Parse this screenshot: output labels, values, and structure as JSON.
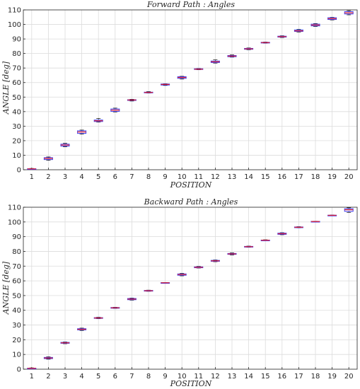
{
  "chart_data": [
    {
      "type": "box",
      "title": "Forward Path :  Angles",
      "xlabel": "POSITION",
      "ylabel": "ANGLE  [deg]",
      "xlim": [
        0.5,
        20.5
      ],
      "ylim": [
        0,
        110
      ],
      "xticks": [
        1,
        2,
        3,
        4,
        5,
        6,
        7,
        8,
        9,
        10,
        11,
        12,
        13,
        14,
        15,
        16,
        17,
        18,
        19,
        20
      ],
      "yticks": [
        0,
        10,
        20,
        30,
        40,
        50,
        60,
        70,
        80,
        90,
        100,
        110
      ],
      "grid": true,
      "box_color": "#3a3af0",
      "median_color": "#e8242a",
      "boxes": [
        {
          "x": 1,
          "min": 0.3,
          "q1": 0.5,
          "median": 0.6,
          "q3": 0.7,
          "max": 0.9
        },
        {
          "x": 2,
          "min": 6.5,
          "q1": 7.0,
          "median": 7.8,
          "q3": 8.3,
          "max": 8.8
        },
        {
          "x": 3,
          "min": 15.8,
          "q1": 16.3,
          "median": 17.0,
          "q3": 17.6,
          "max": 18.2
        },
        {
          "x": 4,
          "min": 24.5,
          "q1": 25.0,
          "median": 26.0,
          "q3": 26.8,
          "max": 27.3
        },
        {
          "x": 5,
          "min": 32.8,
          "q1": 33.2,
          "median": 33.7,
          "q3": 34.2,
          "max": 35.3
        },
        {
          "x": 6,
          "min": 39.8,
          "q1": 40.2,
          "median": 41.0,
          "q3": 41.8,
          "max": 42.4
        },
        {
          "x": 7,
          "min": 47.3,
          "q1": 47.7,
          "median": 48.0,
          "q3": 48.2,
          "max": 48.5
        },
        {
          "x": 8,
          "min": 52.8,
          "q1": 53.0,
          "median": 53.2,
          "q3": 53.4,
          "max": 53.8
        },
        {
          "x": 9,
          "min": 58.0,
          "q1": 58.3,
          "median": 58.7,
          "q3": 59.0,
          "max": 59.2
        },
        {
          "x": 10,
          "min": 62.4,
          "q1": 62.9,
          "median": 63.5,
          "q3": 64.0,
          "max": 64.3
        },
        {
          "x": 11,
          "min": 68.8,
          "q1": 69.0,
          "median": 69.2,
          "q3": 69.5,
          "max": 69.7
        },
        {
          "x": 12,
          "min": 73.4,
          "q1": 73.8,
          "median": 74.3,
          "q3": 74.8,
          "max": 75.6
        },
        {
          "x": 13,
          "min": 77.5,
          "q1": 77.8,
          "median": 78.2,
          "q3": 78.6,
          "max": 79.0
        },
        {
          "x": 14,
          "min": 82.6,
          "q1": 82.9,
          "median": 83.2,
          "q3": 83.5,
          "max": 83.8
        },
        {
          "x": 15,
          "min": 87.1,
          "q1": 87.3,
          "median": 87.5,
          "q3": 87.7,
          "max": 87.9
        },
        {
          "x": 16,
          "min": 91.0,
          "q1": 91.3,
          "median": 91.6,
          "q3": 91.9,
          "max": 92.2
        },
        {
          "x": 17,
          "min": 94.8,
          "q1": 95.2,
          "median": 95.6,
          "q3": 96.2,
          "max": 96.6
        },
        {
          "x": 18,
          "min": 98.6,
          "q1": 99.0,
          "median": 99.6,
          "q3": 100.2,
          "max": 100.6
        },
        {
          "x": 19,
          "min": 103.1,
          "q1": 103.4,
          "median": 104.0,
          "q3": 104.6,
          "max": 104.9
        },
        {
          "x": 20,
          "min": 106.6,
          "q1": 107.2,
          "median": 108.0,
          "q3": 108.8,
          "max": 109.5
        }
      ]
    },
    {
      "type": "box",
      "title": "Backward Path :  Angles",
      "xlabel": "POSITION",
      "ylabel": "ANGLE  [deg]",
      "xlim": [
        0.5,
        20.5
      ],
      "ylim": [
        0,
        110
      ],
      "xticks": [
        1,
        2,
        3,
        4,
        5,
        6,
        7,
        8,
        9,
        10,
        11,
        12,
        13,
        14,
        15,
        16,
        17,
        18,
        19,
        20
      ],
      "yticks": [
        0,
        10,
        20,
        30,
        40,
        50,
        60,
        70,
        80,
        90,
        100,
        110
      ],
      "grid": true,
      "box_color": "#3a3af0",
      "median_color": "#e8242a",
      "boxes": [
        {
          "x": 1,
          "min": 0.3,
          "q1": 0.5,
          "median": 0.6,
          "q3": 0.7,
          "max": 0.9
        },
        {
          "x": 2,
          "min": 6.8,
          "q1": 7.2,
          "median": 7.6,
          "q3": 8.0,
          "max": 8.4
        },
        {
          "x": 3,
          "min": 17.3,
          "q1": 17.6,
          "median": 17.9,
          "q3": 18.2,
          "max": 18.5
        },
        {
          "x": 4,
          "min": 26.3,
          "q1": 26.7,
          "median": 27.1,
          "q3": 27.5,
          "max": 27.9
        },
        {
          "x": 5,
          "min": 34.3,
          "q1": 34.6,
          "median": 34.8,
          "q3": 35.0,
          "max": 35.3
        },
        {
          "x": 6,
          "min": 41.3,
          "q1": 41.5,
          "median": 41.7,
          "q3": 41.9,
          "max": 42.1
        },
        {
          "x": 7,
          "min": 46.9,
          "q1": 47.2,
          "median": 47.6,
          "q3": 48.0,
          "max": 48.3
        },
        {
          "x": 8,
          "min": 52.9,
          "q1": 53.1,
          "median": 53.3,
          "q3": 53.5,
          "max": 53.7
        },
        {
          "x": 9,
          "min": 58.5,
          "q1": 58.6,
          "median": 58.7,
          "q3": 58.8,
          "max": 58.9
        },
        {
          "x": 10,
          "min": 63.4,
          "q1": 63.8,
          "median": 64.3,
          "q3": 64.7,
          "max": 65.1
        },
        {
          "x": 11,
          "min": 68.7,
          "q1": 68.9,
          "median": 69.2,
          "q3": 69.5,
          "max": 69.8
        },
        {
          "x": 12,
          "min": 73.0,
          "q1": 73.3,
          "median": 73.6,
          "q3": 73.9,
          "max": 74.2
        },
        {
          "x": 13,
          "min": 77.6,
          "q1": 78.0,
          "median": 78.3,
          "q3": 78.6,
          "max": 79.0
        },
        {
          "x": 14,
          "min": 82.8,
          "q1": 83.0,
          "median": 83.2,
          "q3": 83.4,
          "max": 83.6
        },
        {
          "x": 15,
          "min": 87.3,
          "q1": 87.5,
          "median": 87.6,
          "q3": 87.7,
          "max": 87.9
        },
        {
          "x": 16,
          "min": 91.3,
          "q1": 91.6,
          "median": 92.0,
          "q3": 92.4,
          "max": 92.7
        },
        {
          "x": 17,
          "min": 96.0,
          "q1": 96.2,
          "median": 96.4,
          "q3": 96.6,
          "max": 96.8
        },
        {
          "x": 18,
          "min": 100.1,
          "q1": 100.2,
          "median": 100.3,
          "q3": 100.4,
          "max": 100.5
        },
        {
          "x": 19,
          "min": 104.3,
          "q1": 104.4,
          "median": 104.5,
          "q3": 104.6,
          "max": 104.7
        },
        {
          "x": 20,
          "min": 106.5,
          "q1": 107.2,
          "median": 108.3,
          "q3": 109.0,
          "max": 109.6
        }
      ]
    }
  ]
}
